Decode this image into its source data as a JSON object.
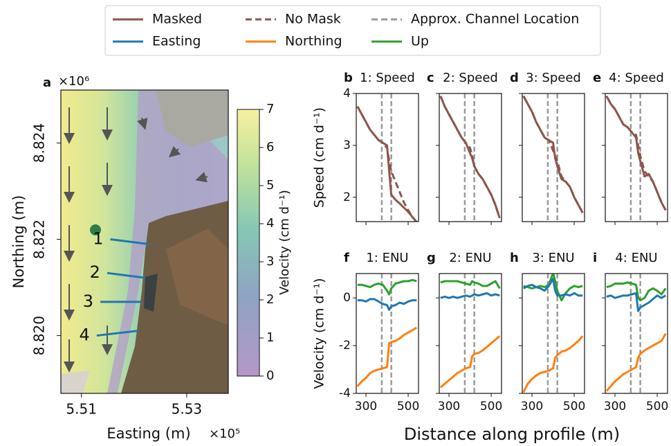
{
  "xlabel": "Distance along profile (m)",
  "chart_data": [
    {
      "type": "map",
      "label": "a",
      "xlabel": "Easting (m)",
      "ylabel": "Northing (m)",
      "x_multiplier": "×10⁵",
      "y_multiplier": "×10⁶",
      "xlim": [
        5.5061,
        5.5379
      ],
      "ylim": [
        8.8188,
        8.8251
      ],
      "xticks": [
        5.51,
        5.53
      ],
      "yticks": [
        8.824,
        8.822,
        {
          "value": 8.82,
          "label": "8.820"
        }
      ],
      "profiles": [
        {
          "name": "1",
          "x": [
            5.5155,
            5.5228
          ],
          "y": [
            8.822,
            8.8219
          ]
        },
        {
          "name": "2",
          "x": [
            5.5149,
            5.5221
          ],
          "y": [
            8.8213,
            8.8212
          ]
        },
        {
          "name": "3",
          "x": [
            5.5136,
            5.5214
          ],
          "y": [
            8.8207,
            8.8207
          ]
        },
        {
          "name": "4",
          "x": [
            5.5129,
            5.5208
          ],
          "y": [
            8.82,
            8.8201
          ]
        }
      ],
      "profile_color": "#1f77b4",
      "colorbar": {
        "label": "Velocity (cm d⁻¹)",
        "lim": [
          0,
          7
        ],
        "ticks": [
          0,
          1,
          2,
          3,
          4,
          5,
          6,
          7
        ]
      }
    },
    {
      "type": "line",
      "label": "b",
      "title": "1: Speed",
      "ylabel": "Speed (cm d⁻¹)",
      "xlim": [
        254,
        549
      ],
      "ylim": [
        1.53,
        4
      ],
      "xticks": [
        300,
        500
      ],
      "yticks": [
        2,
        3,
        4
      ],
      "channel": {
        "name": "Approx. Channel Location",
        "x": [
          375,
          420
        ],
        "color": "#999999"
      },
      "x": [
        260,
        280,
        300,
        320,
        340,
        360,
        380,
        400,
        410,
        420,
        440,
        460,
        480,
        500,
        520,
        540
      ],
      "series": [
        {
          "name": "Masked",
          "color": "#8c564b",
          "style": "solid",
          "values": [
            3.75,
            3.6,
            3.45,
            3.3,
            3.2,
            3.1,
            3.05,
            3.0,
            2.5,
            2.05,
            1.95,
            1.88,
            1.8,
            1.72,
            1.62,
            1.52
          ]
        },
        {
          "name": "No Mask",
          "color": "#8c564b",
          "style": "dashed",
          "values": [
            3.75,
            3.6,
            3.45,
            3.3,
            3.2,
            3.1,
            3.05,
            2.95,
            2.7,
            2.5,
            2.3,
            2.1,
            1.9,
            1.75,
            1.62,
            1.52
          ]
        }
      ]
    },
    {
      "type": "line",
      "label": "c",
      "title": "2: Speed",
      "xlim": [
        254,
        549
      ],
      "ylim": [
        1.53,
        4
      ],
      "xticks": [
        300,
        500
      ],
      "yticks": [
        2,
        3,
        4
      ],
      "channel": {
        "x": [
          375,
          420
        ],
        "color": "#999999"
      },
      "x": [
        260,
        280,
        300,
        320,
        340,
        360,
        380,
        400,
        410,
        420,
        440,
        460,
        480,
        500,
        520,
        540
      ],
      "series": [
        {
          "name": "Masked",
          "color": "#8c564b",
          "style": "solid",
          "values": [
            3.95,
            3.75,
            3.6,
            3.45,
            3.3,
            3.15,
            3.05,
            2.85,
            2.75,
            2.6,
            2.45,
            2.35,
            2.2,
            2.05,
            1.85,
            1.6
          ]
        },
        {
          "name": "No Mask",
          "color": "#8c564b",
          "style": "dashed",
          "values": [
            3.95,
            3.75,
            3.6,
            3.45,
            3.3,
            3.15,
            3.05,
            2.95,
            2.8,
            2.6,
            2.45,
            2.35,
            2.2,
            2.05,
            1.85,
            1.6
          ]
        }
      ]
    },
    {
      "type": "line",
      "label": "d",
      "title": "3: Speed",
      "xlim": [
        254,
        549
      ],
      "ylim": [
        1.53,
        4
      ],
      "xticks": [
        300,
        500
      ],
      "yticks": [
        2,
        3,
        4
      ],
      "channel": {
        "x": [
          375,
          420
        ],
        "color": "#999999"
      },
      "x": [
        260,
        280,
        300,
        320,
        340,
        360,
        380,
        400,
        410,
        420,
        440,
        460,
        480,
        500,
        520,
        540
      ],
      "series": [
        {
          "name": "Masked",
          "color": "#8c564b",
          "style": "solid",
          "values": [
            3.95,
            3.8,
            3.65,
            3.45,
            3.3,
            3.15,
            3.1,
            3.05,
            2.75,
            2.6,
            2.35,
            2.3,
            2.2,
            2.0,
            1.85,
            1.7
          ]
        },
        {
          "name": "No Mask",
          "color": "#8c564b",
          "style": "dashed",
          "values": [
            3.95,
            3.8,
            3.65,
            3.45,
            3.3,
            3.15,
            3.1,
            2.9,
            2.8,
            2.7,
            2.4,
            2.3,
            2.2,
            2.0,
            1.85,
            1.7
          ]
        }
      ]
    },
    {
      "type": "line",
      "label": "e",
      "title": "4: Speed",
      "xlim": [
        254,
        549
      ],
      "ylim": [
        1.53,
        4
      ],
      "xticks": [
        300,
        500
      ],
      "yticks": [
        2,
        3,
        4
      ],
      "channel": {
        "x": [
          375,
          420
        ],
        "color": "#999999"
      },
      "x": [
        260,
        280,
        300,
        320,
        340,
        360,
        380,
        400,
        410,
        420,
        440,
        460,
        480,
        500,
        520,
        540
      ],
      "series": [
        {
          "name": "Masked",
          "color": "#8c564b",
          "style": "solid",
          "values": [
            3.95,
            3.8,
            3.7,
            3.55,
            3.4,
            3.35,
            3.25,
            3.15,
            2.85,
            2.7,
            2.4,
            2.45,
            2.3,
            2.1,
            1.9,
            1.75
          ]
        },
        {
          "name": "No Mask",
          "color": "#8c564b",
          "style": "dashed",
          "values": [
            3.95,
            3.8,
            3.7,
            3.55,
            3.4,
            3.35,
            3.25,
            3.2,
            3.0,
            2.8,
            2.5,
            2.4,
            2.3,
            2.1,
            1.9,
            1.75
          ]
        }
      ]
    },
    {
      "type": "line",
      "label": "f",
      "title": "1: ENU",
      "ylabel": "Velocity (cm d⁻¹)",
      "xlim": [
        254,
        549
      ],
      "ylim": [
        -4,
        1.02
      ],
      "xticks": [
        300,
        500
      ],
      "yticks": [
        -4,
        -2,
        0
      ],
      "channel": {
        "x": [
          375,
          420
        ],
        "color": "#999999"
      },
      "x": [
        260,
        280,
        300,
        320,
        340,
        360,
        380,
        400,
        410,
        420,
        440,
        460,
        480,
        500,
        520,
        540
      ],
      "series": [
        {
          "name": "Easting",
          "color": "#1f77b4",
          "style": "solid",
          "values": [
            -0.1,
            -0.1,
            -0.15,
            -0.05,
            -0.05,
            -0.15,
            -0.25,
            -0.3,
            -0.5,
            -0.35,
            -0.3,
            -0.2,
            -0.25,
            -0.15,
            -0.1,
            -0.1
          ]
        },
        {
          "name": "Northing",
          "color": "#ff7f0e",
          "style": "solid",
          "values": [
            -3.7,
            -3.5,
            -3.35,
            -3.15,
            -3.05,
            -3.0,
            -2.95,
            -2.9,
            -1.9,
            -1.85,
            -1.8,
            -1.7,
            -1.55,
            -1.45,
            -1.35,
            -1.25
          ]
        },
        {
          "name": "Up",
          "color": "#2ca02c",
          "style": "solid",
          "values": [
            0.55,
            0.55,
            0.5,
            0.45,
            0.55,
            0.6,
            0.55,
            0.3,
            0.15,
            0.4,
            0.6,
            0.65,
            0.7,
            0.7,
            0.75,
            0.7
          ]
        }
      ]
    },
    {
      "type": "line",
      "label": "g",
      "title": "2: ENU",
      "xlim": [
        254,
        549
      ],
      "ylim": [
        -4,
        1.02
      ],
      "xticks": [
        300,
        500
      ],
      "yticks": [
        -4,
        -2,
        0
      ],
      "channel": {
        "x": [
          375,
          420
        ],
        "color": "#999999"
      },
      "x": [
        260,
        280,
        300,
        320,
        340,
        360,
        380,
        400,
        410,
        420,
        440,
        460,
        480,
        500,
        520,
        540
      ],
      "series": [
        {
          "name": "Easting",
          "color": "#1f77b4",
          "style": "solid",
          "values": [
            0.0,
            0.05,
            0.0,
            0.05,
            0.0,
            0.05,
            0.1,
            0.05,
            0.1,
            0.15,
            0.1,
            0.15,
            0.2,
            0.1,
            0.15,
            0.1
          ]
        },
        {
          "name": "Northing",
          "color": "#ff7f0e",
          "style": "solid",
          "values": [
            -3.75,
            -3.6,
            -3.45,
            -3.3,
            -3.15,
            -3.05,
            -2.95,
            -2.9,
            -2.45,
            -2.35,
            -2.3,
            -2.2,
            -2.05,
            -1.9,
            -1.75,
            -1.6
          ]
        },
        {
          "name": "Up",
          "color": "#2ca02c",
          "style": "solid",
          "values": [
            0.65,
            0.7,
            0.7,
            0.7,
            0.7,
            0.65,
            0.6,
            0.55,
            0.7,
            0.65,
            0.6,
            0.5,
            0.5,
            0.6,
            0.7,
            0.4
          ]
        }
      ]
    },
    {
      "type": "line",
      "label": "h",
      "title": "3: ENU",
      "xlim": [
        254,
        549
      ],
      "ylim": [
        -4,
        1.02
      ],
      "xticks": [
        300,
        500
      ],
      "yticks": [
        -4,
        -2,
        0
      ],
      "channel": {
        "x": [
          375,
          420
        ],
        "color": "#999999"
      },
      "x": [
        260,
        280,
        300,
        320,
        340,
        360,
        380,
        400,
        410,
        420,
        440,
        460,
        480,
        500,
        520,
        540
      ],
      "series": [
        {
          "name": "Easting",
          "color": "#1f77b4",
          "style": "solid",
          "values": [
            0.4,
            0.5,
            0.55,
            0.45,
            0.4,
            0.3,
            0.5,
            0.8,
            0.3,
            0.1,
            0.1,
            0.15,
            0.1,
            0.2,
            0.1,
            0.1
          ]
        },
        {
          "name": "Northing",
          "color": "#ff7f0e",
          "style": "solid",
          "values": [
            -3.95,
            -3.6,
            -3.4,
            -3.25,
            -3.15,
            -3.1,
            -3.05,
            -2.95,
            -2.5,
            -2.4,
            -2.25,
            -2.2,
            -2.1,
            -1.95,
            -1.8,
            -1.6
          ]
        },
        {
          "name": "Up",
          "color": "#2ca02c",
          "style": "solid",
          "values": [
            0.5,
            0.45,
            0.4,
            0.45,
            0.5,
            0.45,
            0.55,
            1.05,
            0.7,
            0.3,
            -0.1,
            0.2,
            0.4,
            0.5,
            0.45,
            0.5
          ]
        }
      ]
    },
    {
      "type": "line",
      "label": "i",
      "title": "4: ENU",
      "xlim": [
        254,
        549
      ],
      "ylim": [
        -4,
        1.02
      ],
      "xticks": [
        300,
        500
      ],
      "yticks": [
        -4,
        -2,
        0
      ],
      "channel": {
        "x": [
          375,
          420
        ],
        "color": "#999999"
      },
      "x": [
        260,
        280,
        300,
        320,
        340,
        360,
        380,
        400,
        410,
        420,
        440,
        460,
        480,
        500,
        520,
        540
      ],
      "series": [
        {
          "name": "Easting",
          "color": "#1f77b4",
          "style": "solid",
          "values": [
            0.05,
            0.1,
            0.0,
            0.05,
            0.1,
            0.1,
            0.15,
            0.2,
            -0.55,
            -0.4,
            -0.3,
            -0.2,
            -0.05,
            0.1,
            0.0,
            0.1
          ]
        },
        {
          "name": "Northing",
          "color": "#ff7f0e",
          "style": "solid",
          "values": [
            -3.9,
            -3.7,
            -3.5,
            -3.35,
            -3.2,
            -3.1,
            -3.0,
            -2.9,
            -2.5,
            -2.35,
            -2.2,
            -2.1,
            -2.0,
            -1.9,
            -1.8,
            -1.5
          ]
        },
        {
          "name": "Up",
          "color": "#2ca02c",
          "style": "solid",
          "values": [
            0.45,
            0.5,
            0.6,
            0.6,
            0.6,
            0.65,
            0.6,
            0.55,
            0.0,
            -0.1,
            0.0,
            0.3,
            0.4,
            0.3,
            0.15,
            0.4
          ]
        }
      ]
    }
  ]
}
